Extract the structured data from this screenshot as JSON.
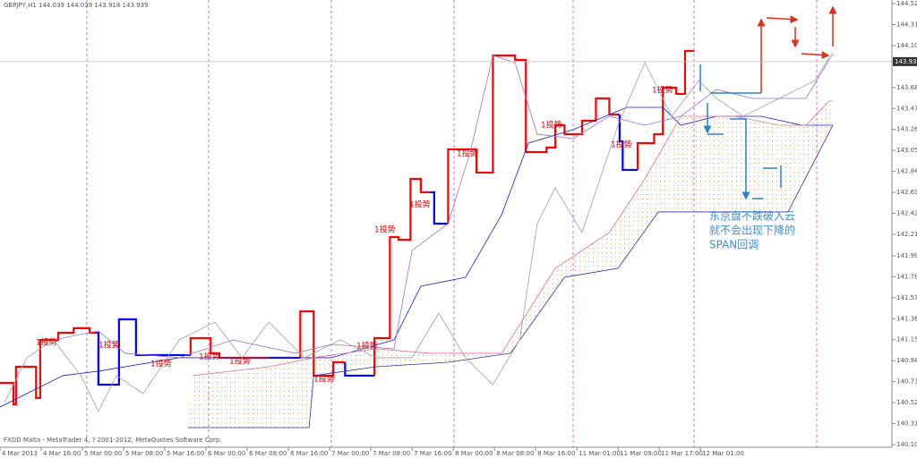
{
  "chart_data": {
    "type": "line",
    "title": "GBPJPY,H1  144.039 144.039 143.918 143.939",
    "footer": "FXDD Malta - MetaTrader 4, ? 2001-2012, MetaQuotes Software Corp.",
    "annotation": [
      "东京盘不跌破入云",
      "就不会出现下降的",
      "SPAN回调"
    ],
    "signals": [
      "1投势",
      "1投势",
      "1投势",
      "1投势",
      "1投势",
      "1投势",
      "1投势",
      "1投势",
      "1投势",
      "1投势",
      "1投势",
      "1投势",
      "1投势"
    ],
    "last_price": 143.939,
    "xlim": [
      0,
      173
    ],
    "xticks": [
      {
        "value": 0,
        "label": "4 Mar 2013"
      },
      {
        "value": 8,
        "label": "4 Mar 16:00"
      },
      {
        "value": 16,
        "label": "5 Mar 00:00"
      },
      {
        "value": 24,
        "label": "5 Mar 08:00"
      },
      {
        "value": 32,
        "label": "5 Mar 16:00"
      },
      {
        "value": 40,
        "label": "6 Mar 00:00"
      },
      {
        "value": 48,
        "label": "6 Mar 08:00"
      },
      {
        "value": 56,
        "label": "6 Mar 16:00"
      },
      {
        "value": 64,
        "label": "7 Mar 00:00"
      },
      {
        "value": 72,
        "label": "7 Mar 08:00"
      },
      {
        "value": 80,
        "label": "7 Mar 16:00"
      },
      {
        "value": 88,
        "label": "8 Mar 00:00"
      },
      {
        "value": 96,
        "label": "8 Mar 08:00"
      },
      {
        "value": 104,
        "label": "8 Mar 16:00"
      },
      {
        "value": 112,
        "label": "11 Mar 01:00"
      },
      {
        "value": 120,
        "label": "11 Mar 09:00"
      },
      {
        "value": 128,
        "label": "11 Mar 17:00"
      },
      {
        "value": 136,
        "label": "12 Mar 01:00"
      }
    ],
    "ylim": [
      140.078,
      144.556
    ],
    "yticks": [
      {
        "value": 144.52,
        "label": "144.520"
      },
      {
        "value": 144.31,
        "label": "144.310"
      },
      {
        "value": 144.1,
        "label": "144.100"
      },
      {
        "value": 143.68,
        "label": "143.680"
      },
      {
        "value": 143.47,
        "label": "143.470"
      },
      {
        "value": 143.26,
        "label": "143.260"
      },
      {
        "value": 143.05,
        "label": "143.050"
      },
      {
        "value": 142.84,
        "label": "142.840"
      },
      {
        "value": 142.63,
        "label": "142.630"
      },
      {
        "value": 142.42,
        "label": "142.420"
      },
      {
        "value": 142.21,
        "label": "142.210"
      },
      141.995,
      141.785,
      141.575,
      141.365,
      141.155,
      140.945,
      140.735,
      140.525,
      140.315,
      140.105
    ],
    "series": [
      {
        "color": "#ff0000",
        "width": 2.2,
        "x": [
          0,
          2.6,
          2.6,
          3.1,
          3.1,
          7,
          7,
          7.8,
          7.8,
          11.3,
          11.3,
          14.3,
          14.3,
          17.4,
          17.4,
          18.8,
          null,
          37,
          37,
          40.9,
          40.9,
          42.6,
          42.6,
          52.2,
          null,
          58.3,
          58.3,
          60.9,
          60.9,
          64.7,
          64.7,
          67,
          null,
          72.7,
          72.7,
          75.7,
          75.7,
          77.4,
          77.4,
          79.7,
          79.7,
          81.7,
          81.7,
          83.5,
          null,
          87,
          87,
          92.5,
          92.5,
          95.7,
          95.7,
          100,
          100,
          102.1,
          102.1,
          106.1,
          106.1,
          107.8,
          107.8,
          109.6,
          109.6,
          113,
          113,
          115.7,
          115.7,
          118.3,
          118.3,
          120.3,
          null,
          123.8,
          123.8,
          127,
          127,
          128.7,
          128.7,
          131.3,
          131.3,
          133,
          133,
          134.8
        ],
        "values": [
          140.723,
          140.723,
          140.508,
          140.508,
          140.884,
          140.884,
          140.571,
          140.571,
          141.153,
          141.153,
          141.225,
          141.225,
          141.27,
          141.27,
          141.225,
          141.225,
          null,
          141.001,
          141.171,
          141.171,
          141.019,
          141.019,
          140.974,
          140.974,
          null,
          140.974,
          141.44,
          141.44,
          140.795,
          140.795,
          140.929,
          140.929,
          null,
          140.795,
          141.171,
          141.171,
          142.183,
          142.183,
          142.156,
          142.156,
          142.765,
          142.765,
          142.631,
          142.631,
          null,
          142.317,
          143.061,
          143.061,
          142.828,
          142.828,
          144.001,
          144.001,
          143.956,
          143.956,
          143.034,
          143.034,
          143.078,
          143.078,
          143.302,
          143.302,
          143.213,
          143.213,
          143.347,
          143.347,
          143.571,
          143.571,
          143.41,
          143.41,
          null,
          142.855,
          143.123,
          143.123,
          143.213,
          143.213,
          143.678,
          143.678,
          143.616,
          143.616,
          144.046,
          144.046
        ]
      },
      {
        "color": "#0000ff",
        "width": 2.2,
        "x": [
          18.8,
          19.1,
          19.1,
          23.1,
          23.1,
          26.4,
          26.4,
          37,
          null,
          52.2,
          58.3,
          null,
          67,
          67,
          72.7,
          null,
          83.5,
          84.3,
          84.3,
          87,
          null,
          120.3,
          120.3,
          120.9,
          120.9,
          123.8
        ],
        "values": [
          141.225,
          141.225,
          140.705,
          140.705,
          141.359,
          141.359,
          141.001,
          141.001,
          null,
          140.974,
          140.974,
          null,
          140.929,
          140.795,
          140.795,
          null,
          142.631,
          142.631,
          142.317,
          142.317,
          null,
          143.41,
          143.141,
          143.141,
          142.855,
          142.855
        ]
      },
      {
        "color": "#2020d0",
        "width": 0.8,
        "x": [
          0,
          12.2,
          19.1,
          34.8,
          48.7,
          64.3,
          76.5,
          81.7,
          90.4,
          97.4,
          102.6,
          111.3,
          121.7,
          128.7,
          132.2,
          139.1,
          147.8,
          155.7,
          161.7
        ],
        "values": [
          140.481,
          140.795,
          140.84,
          140.974,
          140.974,
          140.974,
          141.153,
          141.69,
          141.78,
          142.407,
          143.123,
          143.258,
          143.481,
          143.481,
          143.302,
          143.392,
          143.392,
          143.302,
          143.302
        ]
      },
      {
        "color": "#a070d0",
        "width": 0.8,
        "x": [
          10.4,
          19.1,
          24.3,
          34.8,
          45.2,
          57.4,
          64.3,
          76.5,
          80,
          87,
          91.3,
          95.7,
          100,
          104.3,
          111.3,
          118.3,
          125.2,
          132.2,
          139.1,
          146.1,
          156.5,
          161.7
        ],
        "values": [
          141.153,
          141.243,
          141.019,
          140.974,
          141.153,
          141.019,
          141.108,
          141.064,
          142.049,
          142.317,
          143.034,
          144.001,
          143.929,
          143.213,
          143.168,
          143.392,
          143.302,
          143.392,
          143.661,
          143.571,
          143.571,
          144.019
        ]
      },
      {
        "color": "#e07090",
        "width": 0.8,
        "x": [
          37.4,
          52.2,
          60.9,
          73,
          83.5,
          97.4,
          107.8,
          118.3,
          125.2,
          132.2,
          142.6,
          151.3,
          156.5,
          160.9,
          161.7
        ],
        "values": [
          140.795,
          140.884,
          140.974,
          141.064,
          141.019,
          141.019,
          141.87,
          142.228,
          142.765,
          143.392,
          143.392,
          143.302,
          143.302,
          143.544,
          143.544
        ]
      },
      {
        "color": "#3030b0",
        "width": 0.8,
        "x": [
          36.5,
          60,
          60.9,
          73,
          87,
          99.1,
          109.6,
          120,
          127.8,
          139.1,
          153,
          161.7
        ],
        "values": [
          140.275,
          140.275,
          140.795,
          140.884,
          140.929,
          141.019,
          141.78,
          141.87,
          142.434,
          142.434,
          142.434,
          143.302
        ]
      },
      {
        "color": "#a0a0a0",
        "width": 0.8,
        "x": [
          0.9,
          5.2,
          10.4,
          15.7,
          19.1,
          22.6,
          27.8,
          34.8,
          41.7,
          47,
          52.2,
          59.1,
          66.1,
          73,
          80,
          85.2,
          90.4,
          95.7,
          100.9,
          104.3,
          107.8,
          113,
          120,
          125.2,
          130.4,
          135.7,
          139.1,
          144.3,
          151.3,
          154.8,
          158.3,
          160.9
        ],
        "values": [
          140.526,
          140.974,
          141.153,
          140.795,
          140.437,
          140.795,
          140.616,
          141.153,
          141.332,
          140.974,
          141.332,
          140.974,
          141.153,
          140.974,
          140.974,
          141.422,
          140.974,
          140.705,
          141.153,
          142.317,
          142.676,
          142.228,
          143.302,
          143.929,
          143.392,
          143.75,
          143.571,
          143.392,
          143.571,
          143.661,
          143.75,
          143.974
        ]
      }
    ]
  }
}
